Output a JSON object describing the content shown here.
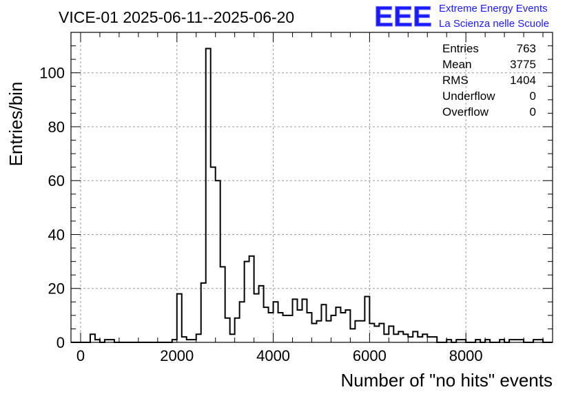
{
  "chart_data": {
    "type": "histogram",
    "title": "VICE-01 2025-06-11--2025-06-20",
    "xlabel": "Number of \"no hits\" events",
    "ylabel": "Entries/bin",
    "xlim": [
      -200,
      9800
    ],
    "ylim": [
      0,
      115
    ],
    "x_ticks": [
      0,
      2000,
      4000,
      6000,
      8000
    ],
    "y_ticks": [
      0,
      20,
      40,
      60,
      80,
      100
    ],
    "grid": true,
    "bin_width": 100,
    "x_start": -200,
    "values": [
      0,
      0,
      0,
      0,
      3,
      1,
      0,
      1,
      1,
      0,
      0,
      0,
      0,
      0,
      0,
      0,
      0,
      0,
      0,
      0,
      0,
      1,
      18,
      2,
      1,
      1,
      3,
      22,
      109,
      65,
      60,
      28,
      9,
      3,
      9,
      15,
      30,
      32,
      18,
      21,
      13,
      11,
      15,
      11,
      10,
      10,
      16,
      12,
      16,
      11,
      7,
      8,
      14,
      8,
      10,
      13,
      11,
      12,
      5,
      8,
      8,
      17,
      7,
      6,
      7,
      3,
      6,
      3,
      4,
      3,
      2,
      4,
      2,
      3,
      2,
      2,
      0,
      0,
      1,
      0,
      1,
      1,
      0,
      0,
      1,
      0,
      1,
      0,
      0,
      1,
      0,
      1,
      1,
      1,
      0,
      0,
      1,
      1,
      0,
      0
    ],
    "stats": [
      {
        "label": "Entries",
        "value": "763"
      },
      {
        "label": "Mean",
        "value": "3775"
      },
      {
        "label": "RMS",
        "value": "1404"
      },
      {
        "label": "Underflow",
        "value": "0"
      },
      {
        "label": "Overflow",
        "value": "0"
      }
    ]
  },
  "logo": {
    "mark": "EEE",
    "line1": "Extreme Energy Events",
    "line2": "La Scienza nelle Scuole",
    "color": "#1a1aff"
  }
}
